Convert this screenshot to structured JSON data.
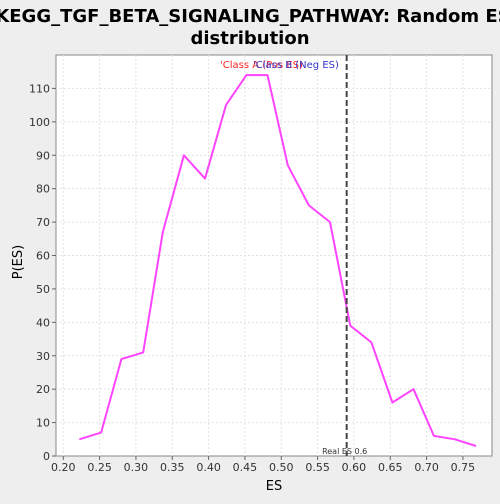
{
  "chart_data": {
    "type": "line",
    "title_line1": "KEGG_TGF_BETA_SIGNALING_PATHWAY: Random ES",
    "title_line2": "distribution",
    "xlabel": "ES",
    "ylabel": "P(ES)",
    "xlim": [
      0.19,
      0.79
    ],
    "ylim": [
      0,
      120
    ],
    "xticks": [
      "0.20",
      "0.25",
      "0.30",
      "0.35",
      "0.40",
      "0.45",
      "0.50",
      "0.55",
      "0.60",
      "0.65",
      "0.70",
      "0.75"
    ],
    "yticks": [
      "0",
      "10",
      "20",
      "30",
      "40",
      "50",
      "60",
      "70",
      "80",
      "90",
      "100",
      "110"
    ],
    "grid": true,
    "series": [
      {
        "name": "Random ES distribution",
        "color": "#ff44ff",
        "x": [
          0.222,
          0.252,
          0.28,
          0.31,
          0.337,
          0.366,
          0.395,
          0.424,
          0.452,
          0.481,
          0.509,
          0.538,
          0.567,
          0.595,
          0.624,
          0.653,
          0.682,
          0.71,
          0.739,
          0.768
        ],
        "y": [
          5,
          7,
          29,
          31,
          67,
          90,
          83,
          105,
          114,
          114,
          87,
          75,
          70,
          39,
          34,
          16,
          20,
          6,
          5,
          3
        ]
      }
    ],
    "legend": [
      {
        "label": "'Class A (Pos ES)",
        "color": "#ff2222"
      },
      {
        "label": "'Class B (Neg ES)",
        "color": "#3333cc"
      }
    ],
    "real_es": {
      "value": 0.59,
      "label": "Real ES 0.6",
      "color": "#444444"
    }
  }
}
